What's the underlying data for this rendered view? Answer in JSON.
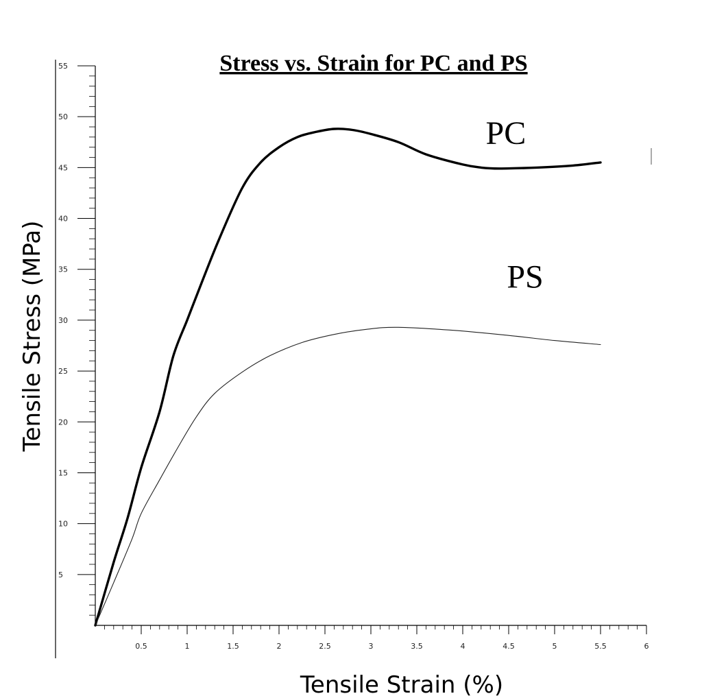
{
  "chart_data": {
    "type": "line",
    "title": "Stress vs. Strain for PC and PS",
    "xlabel": "Tensile Strain (%)",
    "ylabel": "Tensile Stress (MPa)",
    "xlim": [
      0,
      6
    ],
    "ylim": [
      0,
      55
    ],
    "xticks": [
      {
        "value": 0.5,
        "label": "0.5"
      },
      {
        "value": 1,
        "label": "1"
      },
      {
        "value": 1.5,
        "label": "1.5"
      },
      {
        "value": 2,
        "label": "2"
      },
      {
        "value": 2.5,
        "label": "2.5"
      },
      {
        "value": 3,
        "label": "3"
      },
      {
        "value": 3.5,
        "label": "3.5"
      },
      {
        "value": 4,
        "label": "4"
      },
      {
        "value": 4.5,
        "label": "4.5"
      },
      {
        "value": 5,
        "label": "5"
      },
      {
        "value": 5.5,
        "label": "5.5"
      },
      {
        "value": 6,
        "label": "6"
      }
    ],
    "yticks": [
      {
        "value": 5,
        "label": "5"
      },
      {
        "value": 10,
        "label": "10"
      },
      {
        "value": 15,
        "label": "15"
      },
      {
        "value": 20,
        "label": "20"
      },
      {
        "value": 25,
        "label": "25"
      },
      {
        "value": 30,
        "label": "30"
      },
      {
        "value": 35,
        "label": "35"
      },
      {
        "value": 40,
        "label": "40"
      },
      {
        "value": 45,
        "label": "45"
      },
      {
        "value": 50,
        "label": "50"
      },
      {
        "value": 55,
        "label": "55"
      }
    ],
    "grid": false,
    "series": [
      {
        "name": "PC",
        "color": "#000000",
        "points": [
          [
            0,
            0
          ],
          [
            0.2,
            6.2
          ],
          [
            0.35,
            10.5
          ],
          [
            0.5,
            15.5
          ],
          [
            0.7,
            21
          ],
          [
            0.85,
            26.5
          ],
          [
            1,
            30
          ],
          [
            1.15,
            33.5
          ],
          [
            1.35,
            38
          ],
          [
            1.6,
            43
          ],
          [
            1.8,
            45.5
          ],
          [
            2,
            47
          ],
          [
            2.2,
            48
          ],
          [
            2.4,
            48.5
          ],
          [
            2.6,
            48.8
          ],
          [
            2.8,
            48.7
          ],
          [
            3,
            48.3
          ],
          [
            3.3,
            47.5
          ],
          [
            3.6,
            46.3
          ],
          [
            4,
            45.3
          ],
          [
            4.2,
            45
          ],
          [
            4.4,
            44.9
          ],
          [
            4.8,
            45
          ],
          [
            5.2,
            45.2
          ],
          [
            5.5,
            45.5
          ]
        ]
      },
      {
        "name": "PS",
        "color": "#222222",
        "points": [
          [
            0,
            0
          ],
          [
            0.2,
            4.2
          ],
          [
            0.4,
            8.5
          ],
          [
            0.5,
            11
          ],
          [
            0.7,
            14.3
          ],
          [
            0.9,
            17.5
          ],
          [
            1.1,
            20.5
          ],
          [
            1.3,
            22.8
          ],
          [
            1.6,
            24.9
          ],
          [
            1.9,
            26.5
          ],
          [
            2.25,
            27.8
          ],
          [
            2.6,
            28.6
          ],
          [
            2.95,
            29.1
          ],
          [
            3.3,
            29.3
          ],
          [
            3.9,
            29
          ],
          [
            4.5,
            28.5
          ],
          [
            5,
            28
          ],
          [
            5.5,
            27.6
          ]
        ]
      }
    ],
    "annotations": [
      {
        "text": "PC",
        "x": 4.25,
        "y": 47.3
      },
      {
        "text": "PS",
        "x": 4.48,
        "y": 33.2
      }
    ]
  }
}
